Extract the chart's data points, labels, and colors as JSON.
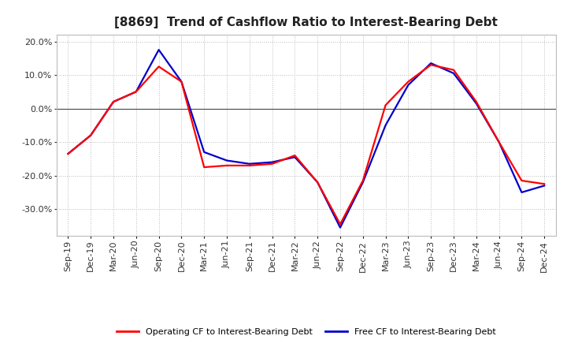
{
  "title": "[8869]  Trend of Cashflow Ratio to Interest-Bearing Debt",
  "x_labels": [
    "Sep-19",
    "Dec-19",
    "Mar-20",
    "Jun-20",
    "Sep-20",
    "Dec-20",
    "Mar-21",
    "Jun-21",
    "Sep-21",
    "Dec-21",
    "Mar-22",
    "Jun-22",
    "Sep-22",
    "Dec-22",
    "Mar-23",
    "Jun-23",
    "Sep-23",
    "Dec-23",
    "Mar-24",
    "Jun-24",
    "Sep-24",
    "Dec-24"
  ],
  "operating_cf": [
    -13.5,
    -8.0,
    2.0,
    5.0,
    12.5,
    8.0,
    -17.5,
    -17.0,
    -17.0,
    -16.5,
    -14.0,
    -22.0,
    -34.5,
    -21.5,
    1.0,
    8.0,
    13.0,
    11.5,
    2.0,
    -10.0,
    -21.5,
    -22.5
  ],
  "free_cf": [
    -13.5,
    -8.0,
    2.0,
    5.0,
    17.5,
    8.0,
    -13.0,
    -15.5,
    -16.5,
    -16.0,
    -14.5,
    -22.0,
    -35.5,
    -22.0,
    -5.0,
    7.0,
    13.5,
    10.5,
    1.5,
    -10.0,
    -25.0,
    -23.0
  ],
  "operating_cf_color": "#ff0000",
  "free_cf_color": "#0000cc",
  "ylim": [
    -38,
    22
  ],
  "yticks": [
    -30.0,
    -20.0,
    -10.0,
    0.0,
    10.0,
    20.0
  ],
  "background_color": "#ffffff",
  "grid_color": "#bbbbbb",
  "legend_operating": "Operating CF to Interest-Bearing Debt",
  "legend_free": "Free CF to Interest-Bearing Debt",
  "title_fontsize": 11,
  "tick_fontsize": 8,
  "legend_fontsize": 8
}
